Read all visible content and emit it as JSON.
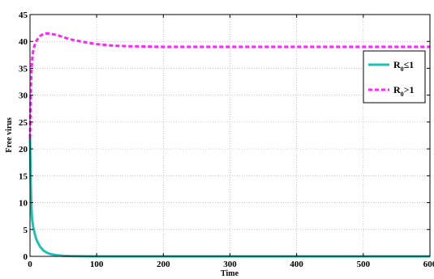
{
  "chart_data": {
    "type": "line",
    "title": "",
    "xlabel": "Time",
    "ylabel": "Free virus",
    "xlim": [
      0,
      600
    ],
    "ylim": [
      0,
      45
    ],
    "xticks": [
      0,
      100,
      200,
      300,
      400,
      500,
      600
    ],
    "yticks": [
      0,
      5,
      10,
      15,
      20,
      25,
      30,
      35,
      40,
      45
    ],
    "grid": true,
    "legend_position": "top-right",
    "series": [
      {
        "name": "R0 ≤1",
        "legend_main": "R",
        "legend_sub": "0",
        "legend_rest": "≤1",
        "color": "#1fbfb8",
        "style": "solid",
        "x": [
          0,
          1,
          2,
          3,
          5,
          8,
          10,
          15,
          20,
          25,
          30,
          40,
          50,
          60,
          80,
          100,
          150,
          200,
          300,
          400,
          500,
          600
        ],
        "y": [
          22,
          14,
          9.5,
          7,
          5.3,
          3.8,
          3,
          1.8,
          1.1,
          0.7,
          0.45,
          0.2,
          0.1,
          0.05,
          0.02,
          0,
          0,
          0,
          0,
          0,
          0,
          0
        ]
      },
      {
        "name": "R0 >1",
        "legend_main": "R",
        "legend_sub": "0",
        "legend_rest": ">1",
        "color": "#ff22ff",
        "style": "dashed",
        "x": [
          0,
          1,
          2,
          3,
          5,
          8,
          10,
          15,
          20,
          25,
          30,
          40,
          50,
          60,
          80,
          100,
          125,
          150,
          200,
          250,
          300,
          400,
          500,
          600
        ],
        "y": [
          22,
          30,
          34,
          36.5,
          38.5,
          39.7,
          40.2,
          41,
          41.4,
          41.5,
          41.45,
          41.2,
          40.8,
          40.4,
          39.9,
          39.5,
          39.2,
          39.1,
          39.0,
          39.0,
          39.0,
          39.0,
          39.0,
          39.0
        ]
      }
    ]
  }
}
